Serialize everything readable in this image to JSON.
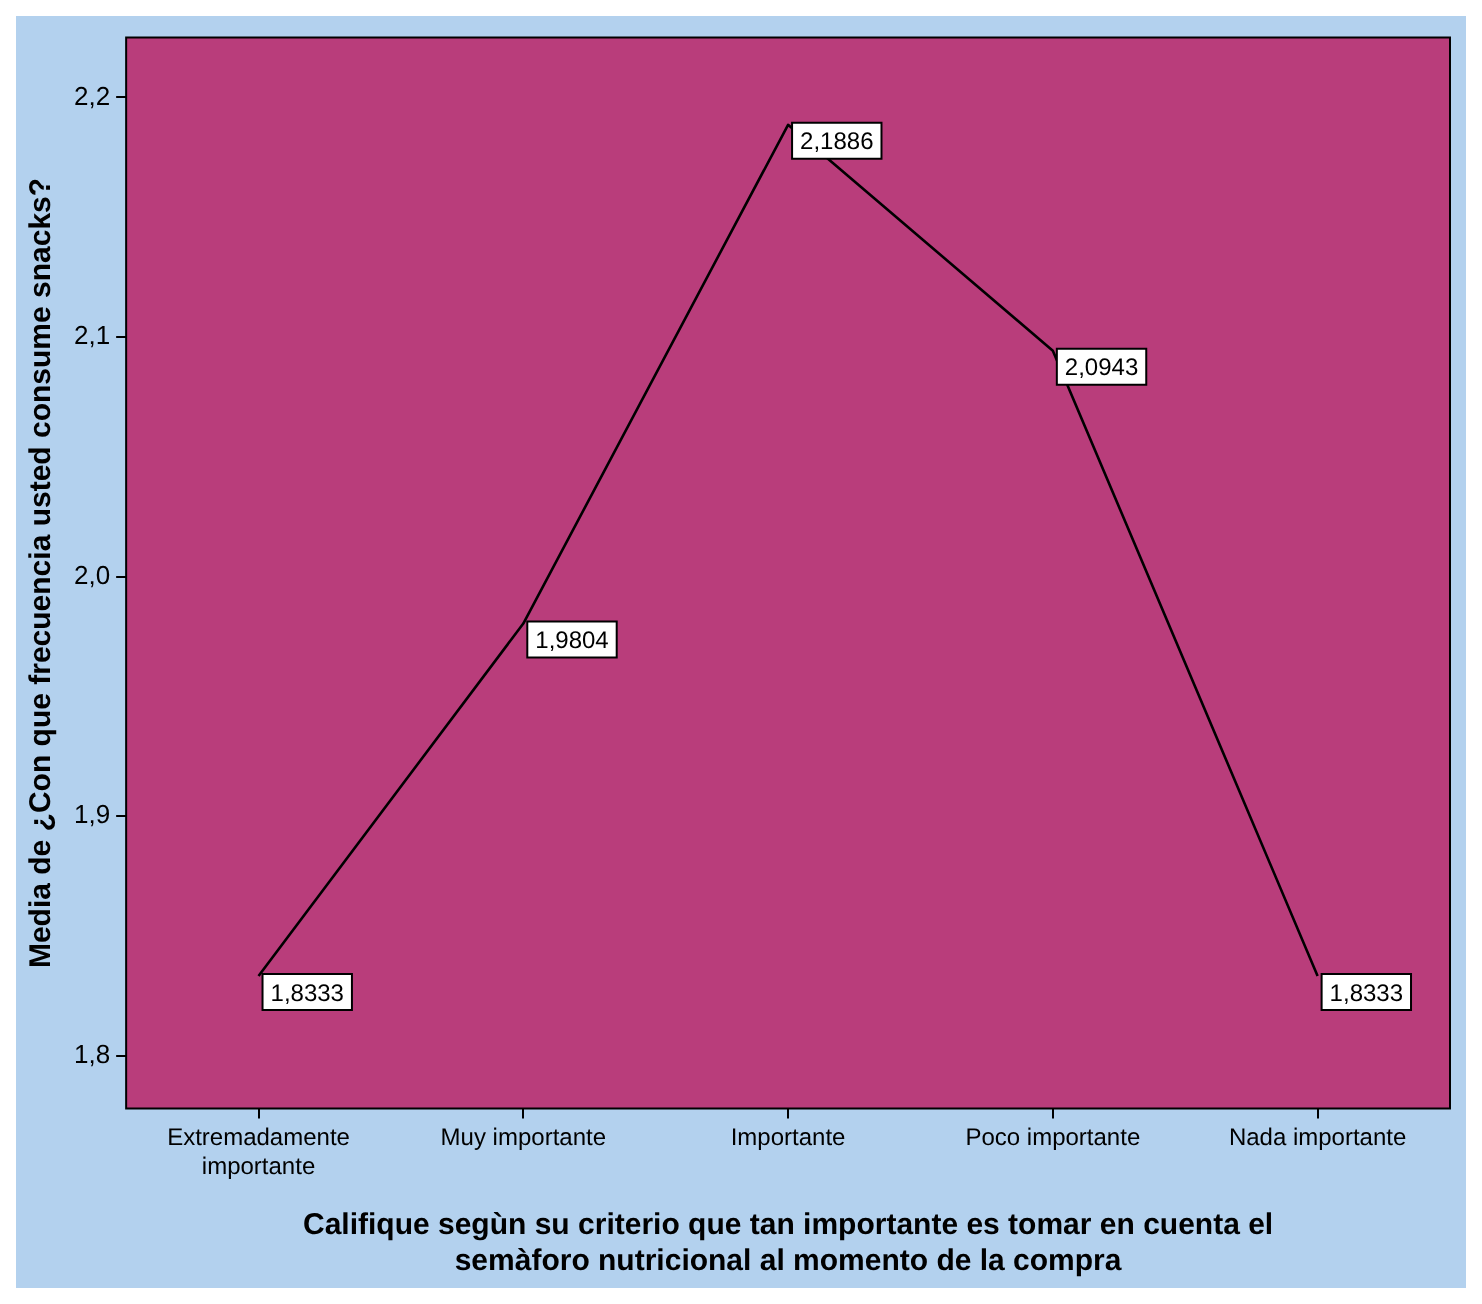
{
  "chart_data": {
    "type": "line",
    "xlabel": "Califique segùn su criterio que tan importante es tomar en cuenta el semàforo nutricional al momento de la compra",
    "ylabel": "Media de ¿Con que frecuencia usted consume snacks?",
    "categories": [
      "Extremadamente importante",
      "Muy importante",
      "Importante",
      "Poco importante",
      "Nada importante"
    ],
    "series": [
      {
        "color": "#000000",
        "values": [
          1.8333,
          1.9804,
          2.1886,
          2.0943,
          1.8333
        ]
      }
    ],
    "value_labels": [
      "1,8333",
      "1,9804",
      "2,1886",
      "2,0943",
      "1,8333"
    ],
    "ylim": [
      1.778,
      2.225
    ],
    "yticks": [
      {
        "value": 1.8,
        "label": "1,8"
      },
      {
        "value": 1.9,
        "label": "1,9"
      },
      {
        "value": 2.0,
        "label": "2,0"
      },
      {
        "value": 2.1,
        "label": "2,1"
      },
      {
        "value": 2.2,
        "label": "2,2"
      }
    ],
    "grid": false,
    "legend": false,
    "marker": "none",
    "line_style": "solid"
  }
}
